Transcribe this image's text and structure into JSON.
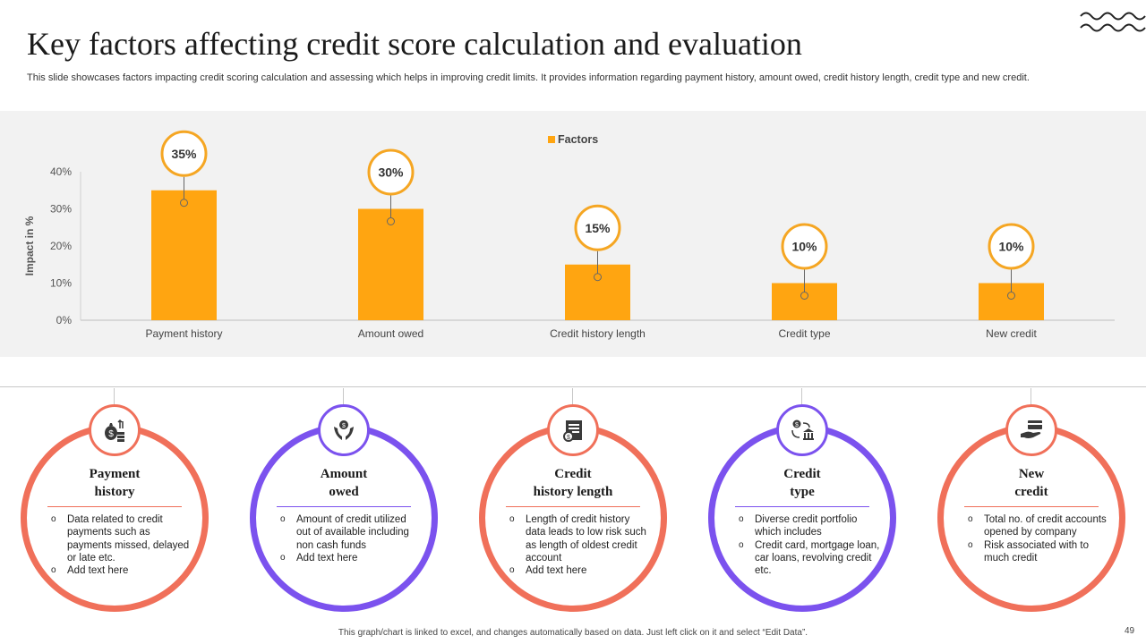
{
  "slide": {
    "title": "Key factors affecting credit score calculation and evaluation",
    "subtitle": "This slide showcases factors impacting credit scoring calculation and assessing which helps in improving credit limits. It provides information regarding payment history, amount owed, credit history length, credit type and new credit.",
    "footnote": "This graph/chart is linked to excel, and changes automatically based on data. Just left click on it and select “Edit Data”.",
    "page_number": "49"
  },
  "colors": {
    "bar": "#FFA511",
    "callout": "#F5A623",
    "coral": "#F0705A",
    "purple": "#7B52EE",
    "icon_dark": "#3A3A3A"
  },
  "chart_data": {
    "type": "bar",
    "categories": [
      "Payment history",
      "Amount owed",
      "Credit history length",
      "Credit type",
      "New credit"
    ],
    "series": [
      {
        "name": "Factors",
        "values": [
          35,
          30,
          15,
          10,
          10
        ]
      }
    ],
    "data_labels": [
      "35%",
      "30%",
      "15%",
      "10%",
      "10%"
    ],
    "ylabel": "Impact in %",
    "yticks": [
      "0%",
      "10%",
      "20%",
      "30%",
      "40%"
    ],
    "ylim": [
      0,
      40
    ],
    "legend": "top",
    "grid": false
  },
  "factors": [
    {
      "title_line1": "Payment",
      "title_line2": "history",
      "icon": "money-bag-icon",
      "color": "coral",
      "bullets": [
        "Data related to credit payments such as payments missed, delayed or late etc.",
        "Add text here"
      ]
    },
    {
      "title_line1": "Amount",
      "title_line2": "owed",
      "icon": "hands-money-icon",
      "color": "purple",
      "bullets": [
        "Amount of credit utilized out of available including non cash funds",
        "Add text here"
      ]
    },
    {
      "title_line1": "Credit",
      "title_line2": "history length",
      "icon": "credit-document-icon",
      "color": "coral",
      "bullets": [
        "Length of credit history data leads to low risk such as length of oldest credit account",
        "Add text here"
      ]
    },
    {
      "title_line1": "Credit",
      "title_line2": "type",
      "icon": "bank-exchange-icon",
      "color": "purple",
      "bullets": [
        "Diverse credit portfolio which includes",
        "Credit card, mortgage loan, car loans, revolving credit etc."
      ]
    },
    {
      "title_line1": "New",
      "title_line2": "credit",
      "icon": "card-hand-icon",
      "color": "coral",
      "bullets": [
        "Total no. of credit accounts opened by company",
        "Risk associated with to much credit"
      ]
    }
  ]
}
